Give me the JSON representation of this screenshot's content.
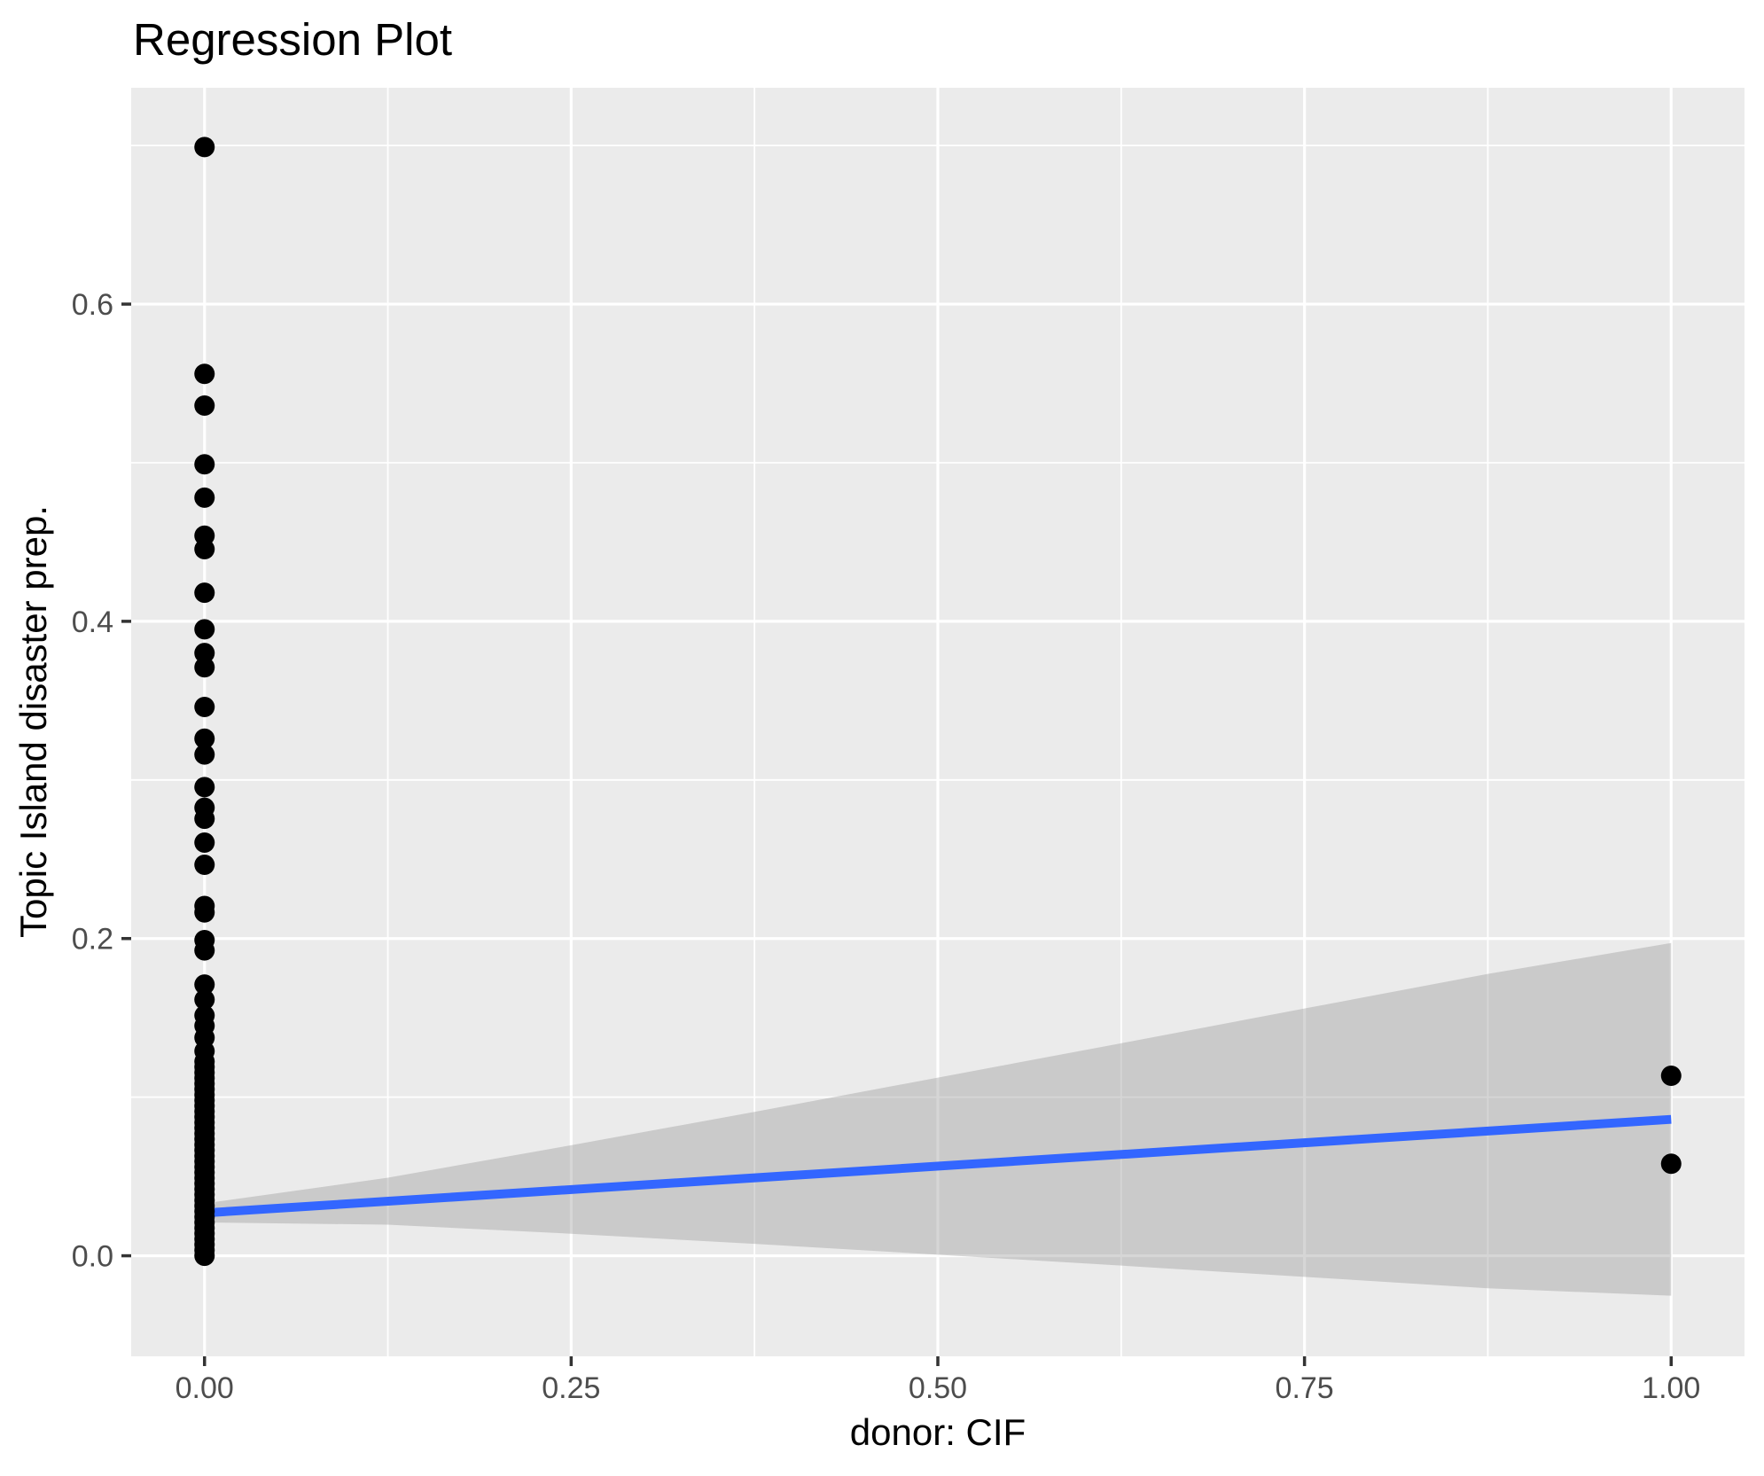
{
  "chart_data": {
    "type": "scatter",
    "title": "Regression Plot",
    "xlabel": "donor: CIF",
    "ylabel": "Topic Island disaster prep.",
    "grid": true,
    "legend": "none",
    "xlim": [
      -0.05,
      1.05
    ],
    "ylim": [
      -0.0634,
      0.7364
    ],
    "x_ticks": {
      "values": [
        0,
        0.25,
        0.5,
        0.75,
        1.0
      ],
      "labels": [
        "0.00",
        "0.25",
        "0.50",
        "0.75",
        "1.00"
      ]
    },
    "y_ticks": {
      "values": [
        0,
        0.2,
        0.4,
        0.6
      ],
      "labels": [
        "0.0",
        "0.2",
        "0.4",
        "0.6"
      ]
    },
    "x_minor": [
      0.125,
      0.375,
      0.625,
      0.875
    ],
    "y_minor": [
      0.1,
      0.3,
      0.5,
      0.7
    ],
    "scatter": [
      {
        "x": 0,
        "y": [
          0.699,
          0.556,
          0.536,
          0.499,
          0.478,
          0.454,
          0.4455,
          0.418,
          0.395,
          0.38,
          0.371,
          0.346,
          0.326,
          0.316,
          0.2955,
          0.2825,
          0.2755,
          0.2605,
          0.2465,
          0.2205,
          0.2165,
          0.199,
          0.1925,
          0.171,
          0.1615,
          0.1515,
          0.145,
          0.1375,
          0.129,
          0.1225,
          0.119,
          0.1155,
          0.112,
          0.1085,
          0.105,
          0.1015,
          0.098,
          0.0945,
          0.091,
          0.0875,
          0.084,
          0.0805,
          0.077,
          0.0735,
          0.07,
          0.0665,
          0.063,
          0.0595,
          0.056,
          0.0525,
          0.049,
          0.0455,
          0.042,
          0.0385,
          0.035,
          0.0315,
          0.028,
          0.0245,
          0.021,
          0.0175,
          0.014,
          0.0105,
          0.007,
          0.0035,
          0.0
        ]
      },
      {
        "x": 1,
        "y": [
          0.1135,
          0.058
        ]
      }
    ],
    "regression_line": {
      "x": [
        0,
        1
      ],
      "y": [
        0.027,
        0.086
      ]
    },
    "confidence_band": [
      {
        "x": 0.0,
        "lo": 0.021,
        "hi": 0.033
      },
      {
        "x": 0.125,
        "lo": 0.0196,
        "hi": 0.0492
      },
      {
        "x": 0.25,
        "lo": 0.0139,
        "hi": 0.0697
      },
      {
        "x": 0.375,
        "lo": 0.0075,
        "hi": 0.0907
      },
      {
        "x": 0.5,
        "lo": 0.0007,
        "hi": 0.1123
      },
      {
        "x": 0.625,
        "lo": -0.0062,
        "hi": 0.134
      },
      {
        "x": 0.75,
        "lo": -0.0133,
        "hi": 0.1559
      },
      {
        "x": 0.875,
        "lo": -0.0205,
        "hi": 0.1777
      },
      {
        "x": 1.0,
        "lo": -0.0252,
        "hi": 0.1972
      }
    ],
    "colors": {
      "panel_background": "#EBEBEB",
      "gridline": "#FFFFFF",
      "point": "#000000",
      "regression_line": "#3366FF",
      "ribbon": "#999999",
      "ribbon_alpha": 0.4,
      "tick_mark": "#333333",
      "tick_label": "#4D4D4D",
      "title_color": "#000000"
    }
  }
}
